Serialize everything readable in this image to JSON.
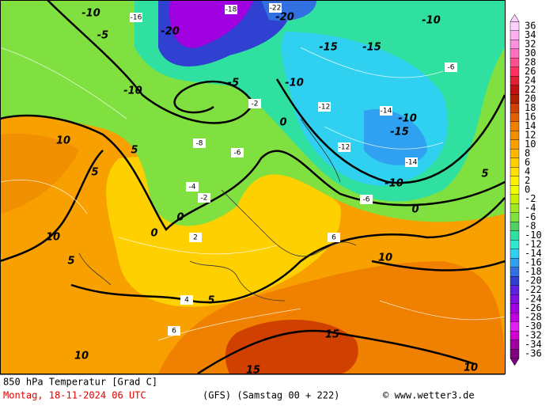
{
  "footer": {
    "title": "850 hPa Temperatur [Grad C]",
    "date": "Montag, 18-11-2024  06 UTC",
    "model": "(GFS)  (Samstag 00 + 222)",
    "credit": "© www.wetter3.de"
  },
  "legend": {
    "labels": [
      36,
      34,
      32,
      30,
      28,
      26,
      24,
      22,
      20,
      18,
      16,
      14,
      12,
      10,
      8,
      6,
      4,
      2,
      0,
      -2,
      -4,
      -6,
      -8,
      -10,
      -12,
      -14,
      -16,
      -18,
      -20,
      -22,
      -24,
      -26,
      -28,
      -30,
      -32,
      -34,
      -36
    ],
    "colors": [
      "#ffd0ff",
      "#ffb0f0",
      "#ff90e0",
      "#ff70c0",
      "#ff5090",
      "#ff3060",
      "#e02030",
      "#c01010",
      "#b02000",
      "#d04000",
      "#e06000",
      "#f08000",
      "#f09000",
      "#f8a000",
      "#ffb800",
      "#ffd000",
      "#ffe000",
      "#fff000",
      "#f0ff00",
      "#c8f000",
      "#a0e820",
      "#80e040",
      "#50d060",
      "#30e0a0",
      "#30e8d0",
      "#30d0f0",
      "#30a0f0",
      "#3070e0",
      "#3040d0",
      "#6020e0",
      "#8010e0",
      "#a000e0",
      "#c000e0",
      "#e020f0",
      "#d000d0",
      "#a000a0",
      "#800080"
    ]
  },
  "map": {
    "contour_labels": [
      "-10",
      "-16",
      "-5",
      "-20",
      "-18",
      "-22",
      "-20",
      "-10",
      "-15",
      "-15",
      "-6",
      "-10",
      "-5",
      "-10",
      "-10",
      "-15",
      "-10",
      "-6",
      "-6",
      "0",
      "0",
      "5",
      "10",
      "10",
      "5",
      "5",
      "6",
      "10",
      "10",
      "15",
      "15",
      "10",
      "5",
      "0",
      "5",
      "0",
      "-2",
      "2",
      "4",
      "6",
      "-8",
      "-12",
      "-14",
      "-12",
      "-14",
      "-4",
      "-2"
    ]
  }
}
